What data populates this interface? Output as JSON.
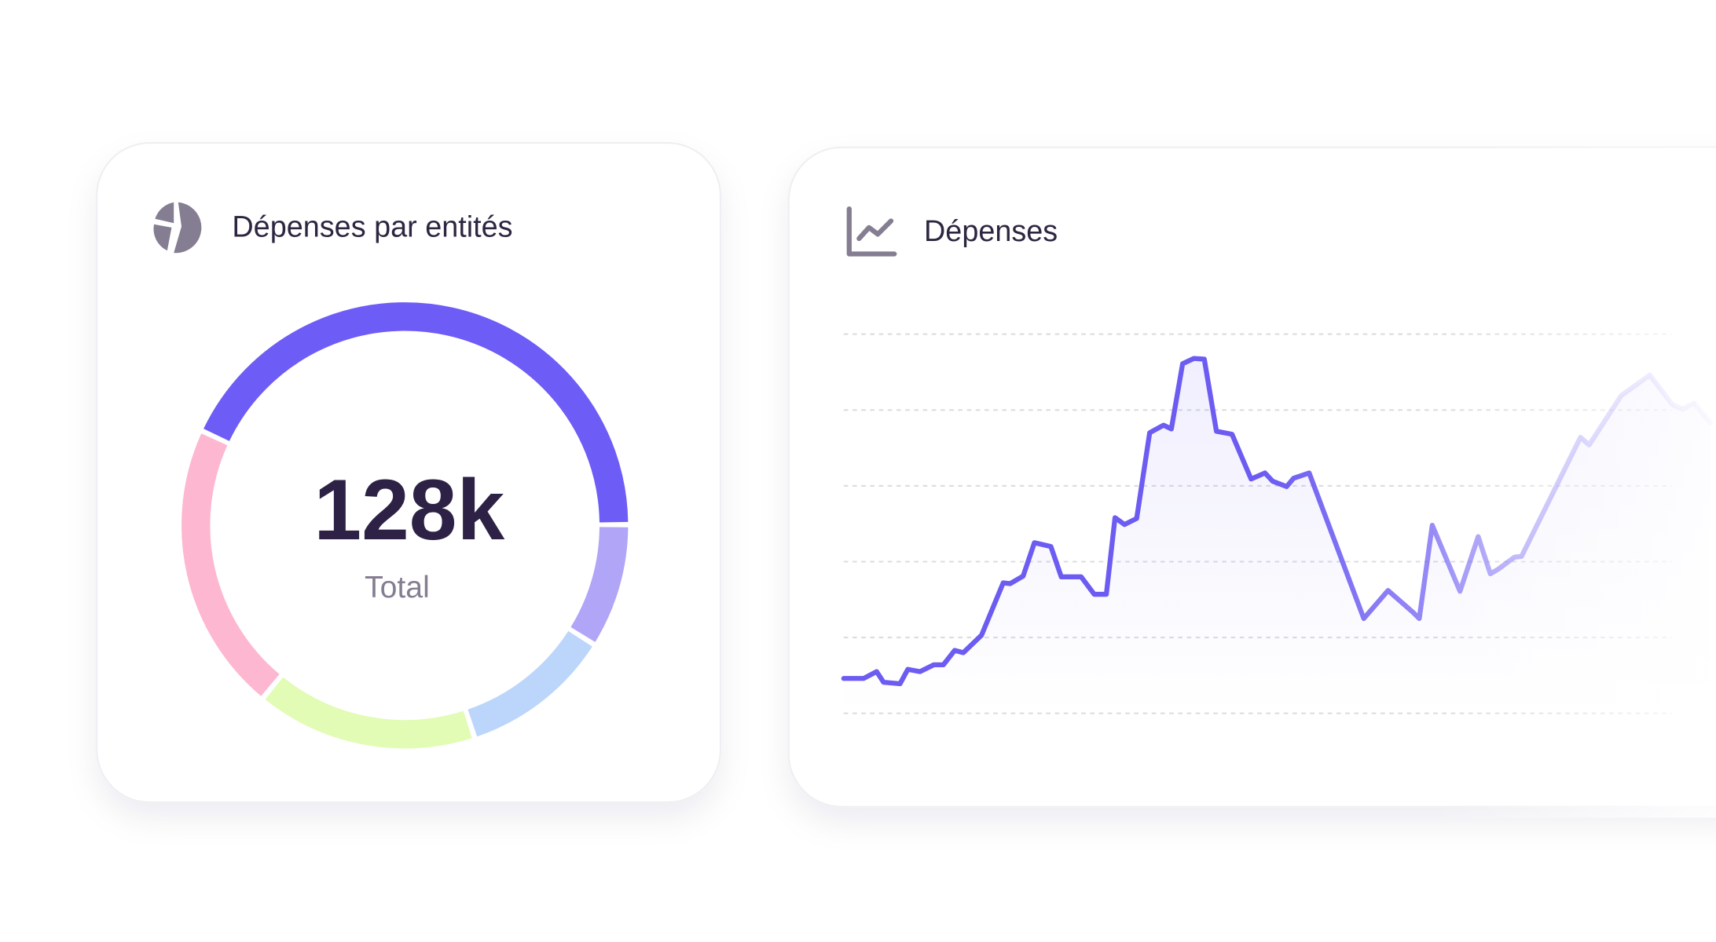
{
  "chart_data": [
    {
      "type": "pie",
      "title": "Dépenses par entités",
      "center_value": "128k",
      "center_label": "Total",
      "values": [
        43,
        9,
        11,
        16,
        21
      ],
      "colors": [
        "#6e5cf6",
        "#b0a5f7",
        "#bcd6fb",
        "#e2fcb6",
        "#fdb7d1"
      ]
    },
    {
      "type": "line",
      "title": "Dépenses",
      "color": "#6c5cf2",
      "grid": true,
      "xlim": [
        0,
        100
      ],
      "ylim": [
        0,
        5
      ],
      "yticks": [
        0,
        1,
        2,
        3,
        4,
        5
      ],
      "x": [
        0,
        2.3,
        3.8,
        4.6,
        6.5,
        7.4,
        8.8,
        10.4,
        11.5,
        12.8,
        13.8,
        15.9,
        18.4,
        19.2,
        20.7,
        22,
        23.9,
        25.1,
        27.4,
        28.9,
        30.3,
        31.3,
        32.4,
        33.8,
        35.3,
        36.9,
        37.8,
        39.1,
        40.4,
        41.6,
        43,
        44.8,
        47,
        48.6,
        49.5,
        51.1,
        51.9,
        53.7,
        60,
        62.8,
        64.5,
        65.7,
        66.4,
        67.9,
        71.1,
        73.2,
        74.6,
        75.5,
        77.4,
        78.2,
        85,
        86,
        89.7,
        93,
        95.6,
        96.8,
        98.1,
        100
      ],
      "values": [
        0.46,
        0.46,
        0.55,
        0.41,
        0.39,
        0.58,
        0.55,
        0.64,
        0.64,
        0.83,
        0.8,
        1.03,
        1.72,
        1.71,
        1.81,
        2.25,
        2.2,
        1.8,
        1.8,
        1.57,
        1.57,
        2.58,
        2.49,
        2.57,
        3.7,
        3.8,
        3.75,
        4.61,
        4.68,
        4.67,
        3.72,
        3.68,
        3.09,
        3.17,
        3.06,
        2.99,
        3.1,
        3.17,
        1.25,
        1.62,
        1.45,
        1.33,
        1.25,
        2.48,
        1.61,
        2.33,
        1.84,
        1.9,
        2.06,
        2.07,
        3.64,
        3.54,
        4.19,
        4.46,
        4.07,
        4.01,
        4.09,
        3.83
      ]
    }
  ]
}
